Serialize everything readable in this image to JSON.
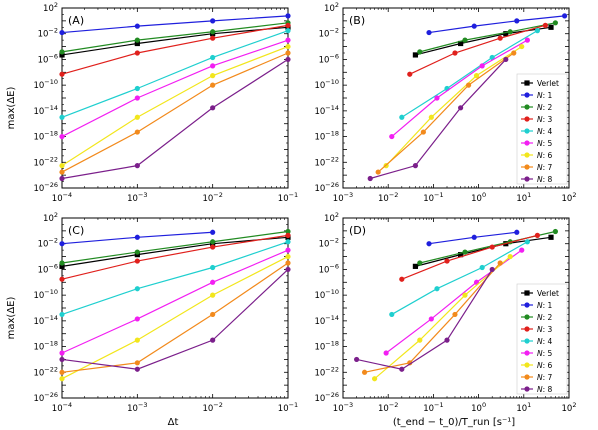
{
  "figure": {
    "ylabel": "max(ΔE)",
    "xlabel_left": "Δt",
    "xlabel_right": "(t_end − t_0)/T_run [s⁻¹]"
  },
  "colors": {
    "Verlet": "#000000",
    "N: 1": "#1f1fdd",
    "N: 2": "#228b22",
    "N: 3": "#e0201c",
    "N: 4": "#1fcfcf",
    "N: 5": "#f21ff2",
    "N: 6": "#f2e61c",
    "N: 7": "#f28a1c",
    "N: 8": "#7b1f8b"
  },
  "legend_labels": [
    "Verlet",
    "N: 1",
    "N: 2",
    "N: 3",
    "N: 4",
    "N: 5",
    "N: 6",
    "N: 7",
    "N: 8"
  ],
  "chart_data": [
    {
      "panel": "A",
      "type": "line",
      "xscale": "log",
      "yscale": "log",
      "xlim": [
        0.0001,
        0.1
      ],
      "ylim": [
        1e-26,
        100
      ],
      "xticks": [
        "10^-4",
        "10^-3",
        "10^-2",
        "10^-1"
      ],
      "yticks": [
        "10^-26",
        "10^-22",
        "10^-18",
        "10^-14",
        "10^-10",
        "10^-6",
        "10^-2",
        "10^2"
      ],
      "xlabel": "",
      "ylabel": "max(ΔE)",
      "legend": false,
      "series": [
        {
          "name": "Verlet",
          "x": [
            0.0001,
            0.001,
            0.01,
            0.1
          ],
          "y": [
            5e-06,
            0.0003,
            0.01,
            0.1
          ]
        },
        {
          "name": "N: 1",
          "x": [
            0.0001,
            0.001,
            0.01,
            0.1
          ],
          "y": [
            0.015,
            0.15,
            1,
            6
          ]
        },
        {
          "name": "N: 2",
          "x": [
            0.0001,
            0.001,
            0.01,
            0.1
          ],
          "y": [
            1.5e-05,
            0.001,
            0.02,
            0.5
          ]
        },
        {
          "name": "N: 3",
          "x": [
            0.0001,
            0.001,
            0.01,
            0.1
          ],
          "y": [
            5e-09,
            1e-05,
            0.002,
            0.2
          ]
        },
        {
          "name": "N: 4",
          "x": [
            0.0001,
            0.001,
            0.01,
            0.1
          ],
          "y": [
            1e-15,
            3e-11,
            2e-06,
            0.03
          ]
        },
        {
          "name": "N: 5",
          "x": [
            0.0001,
            0.001,
            0.01,
            0.1
          ],
          "y": [
            1e-18,
            1e-12,
            1e-07,
            0.001
          ]
        },
        {
          "name": "N: 6",
          "x": [
            0.0001,
            0.001,
            0.01,
            0.1
          ],
          "y": [
            3e-23,
            1e-15,
            3e-09,
            0.0001
          ]
        },
        {
          "name": "N: 7",
          "x": [
            0.0001,
            0.001,
            0.01,
            0.1
          ],
          "y": [
            3e-24,
            5e-18,
            1e-10,
            1e-05
          ]
        },
        {
          "name": "N: 8",
          "x": [
            0.0001,
            0.001,
            0.01,
            0.1
          ],
          "y": [
            3e-25,
            3e-23,
            3e-14,
            1e-06
          ]
        }
      ]
    },
    {
      "panel": "B",
      "type": "line",
      "xscale": "log",
      "yscale": "log",
      "xlim": [
        0.001,
        100
      ],
      "ylim": [
        1e-26,
        100
      ],
      "xticks": [
        "10^-3",
        "10^-2",
        "10^-1",
        "10^0",
        "10^1",
        "10^2"
      ],
      "yticks": [
        "10^-26",
        "10^-22",
        "10^-18",
        "10^-14",
        "10^-10",
        "10^-6",
        "10^-2",
        "10^2"
      ],
      "xlabel": "",
      "ylabel": "",
      "legend": true,
      "legend_position": "right",
      "series": [
        {
          "name": "Verlet",
          "x": [
            0.04,
            0.4,
            4,
            40
          ],
          "y": [
            5e-06,
            0.0003,
            0.01,
            0.1
          ]
        },
        {
          "name": "N: 1",
          "x": [
            0.08,
            0.8,
            7,
            80
          ],
          "y": [
            0.015,
            0.15,
            1,
            6
          ]
        },
        {
          "name": "N: 2",
          "x": [
            0.05,
            0.5,
            5,
            50
          ],
          "y": [
            1.5e-05,
            0.001,
            0.02,
            0.5
          ]
        },
        {
          "name": "N: 3",
          "x": [
            0.03,
            0.3,
            3,
            30
          ],
          "y": [
            5e-09,
            1e-05,
            0.002,
            0.2
          ]
        },
        {
          "name": "N: 4",
          "x": [
            0.02,
            0.2,
            2,
            20
          ],
          "y": [
            1e-15,
            3e-11,
            2e-06,
            0.03
          ]
        },
        {
          "name": "N: 5",
          "x": [
            0.012,
            0.12,
            1.2,
            12
          ],
          "y": [
            1e-18,
            1e-12,
            1e-07,
            0.001
          ]
        },
        {
          "name": "N: 6",
          "x": [
            0.009,
            0.09,
            0.9,
            9
          ],
          "y": [
            3e-23,
            1e-15,
            3e-09,
            0.0001
          ]
        },
        {
          "name": "N: 7",
          "x": [
            0.006,
            0.06,
            0.6,
            6
          ],
          "y": [
            3e-24,
            5e-18,
            1e-10,
            1e-05
          ]
        },
        {
          "name": "N: 8",
          "x": [
            0.004,
            0.04,
            0.4,
            4
          ],
          "y": [
            3e-25,
            3e-23,
            3e-14,
            1e-06
          ]
        }
      ]
    },
    {
      "panel": "C",
      "type": "line",
      "xscale": "log",
      "yscale": "log",
      "xlim": [
        0.0001,
        0.1
      ],
      "ylim": [
        1e-26,
        100
      ],
      "xticks": [
        "10^-4",
        "10^-3",
        "10^-2",
        "10^-1"
      ],
      "yticks": [
        "10^-26",
        "10^-22",
        "10^-18",
        "10^-14",
        "10^-10",
        "10^-6",
        "10^-2",
        "10^2"
      ],
      "xlabel": "Δt",
      "ylabel": "max(ΔE)",
      "legend": false,
      "series": [
        {
          "name": "Verlet",
          "x": [
            0.0001,
            0.001,
            0.01,
            0.1
          ],
          "y": [
            3e-06,
            0.0002,
            0.01,
            0.1
          ]
        },
        {
          "name": "N: 1",
          "x": [
            0.0001,
            0.001,
            0.01
          ],
          "y": [
            0.01,
            0.1,
            0.6
          ]
        },
        {
          "name": "N: 2",
          "x": [
            0.0001,
            0.001,
            0.01,
            0.1
          ],
          "y": [
            1e-05,
            0.0005,
            0.02,
            0.8
          ]
        },
        {
          "name": "N: 3",
          "x": [
            0.0001,
            0.001,
            0.01,
            0.1
          ],
          "y": [
            3e-08,
            2e-05,
            0.003,
            0.2
          ]
        },
        {
          "name": "N: 4",
          "x": [
            0.0001,
            0.001,
            0.01,
            0.1
          ],
          "y": [
            1e-13,
            1e-09,
            2e-06,
            0.02
          ]
        },
        {
          "name": "N: 5",
          "x": [
            0.0001,
            0.001,
            0.01,
            0.1
          ],
          "y": [
            1e-19,
            2e-14,
            1e-08,
            0.001
          ]
        },
        {
          "name": "N: 6",
          "x": [
            0.0001,
            0.001,
            0.01,
            0.1
          ],
          "y": [
            1e-23,
            1e-17,
            1e-10,
            0.0001
          ]
        },
        {
          "name": "N: 7",
          "x": [
            0.0001,
            0.001,
            0.01,
            0.1
          ],
          "y": [
            1e-22,
            3e-21,
            1e-13,
            1e-05
          ]
        },
        {
          "name": "N: 8",
          "x": [
            0.0001,
            0.001,
            0.01,
            0.1
          ],
          "y": [
            1e-20,
            3e-22,
            1e-17,
            1e-06
          ]
        }
      ]
    },
    {
      "panel": "D",
      "type": "line",
      "xscale": "log",
      "yscale": "log",
      "xlim": [
        0.001,
        100
      ],
      "ylim": [
        1e-26,
        100
      ],
      "xticks": [
        "10^-3",
        "10^-2",
        "10^-1",
        "10^0",
        "10^1",
        "10^2"
      ],
      "yticks": [
        "10^-26",
        "10^-22",
        "10^-18",
        "10^-14",
        "10^-10",
        "10^-6",
        "10^-2",
        "10^2"
      ],
      "xlabel": "(t_end − t_0)/T_run [s⁻¹]",
      "ylabel": "",
      "legend": true,
      "legend_position": "right",
      "series": [
        {
          "name": "Verlet",
          "x": [
            0.04,
            0.4,
            4,
            40
          ],
          "y": [
            3e-06,
            0.0002,
            0.01,
            0.1
          ]
        },
        {
          "name": "N: 1",
          "x": [
            0.08,
            0.8,
            7
          ],
          "y": [
            0.01,
            0.1,
            0.6
          ]
        },
        {
          "name": "N: 2",
          "x": [
            0.05,
            0.5,
            5,
            50
          ],
          "y": [
            1e-05,
            0.0005,
            0.02,
            0.8
          ]
        },
        {
          "name": "N: 3",
          "x": [
            0.02,
            0.2,
            2,
            20
          ],
          "y": [
            3e-08,
            2e-05,
            0.003,
            0.2
          ]
        },
        {
          "name": "N: 4",
          "x": [
            0.012,
            0.12,
            1.2,
            12
          ],
          "y": [
            1e-13,
            1e-09,
            2e-06,
            0.02
          ]
        },
        {
          "name": "N: 5",
          "x": [
            0.009,
            0.09,
            0.9,
            9
          ],
          "y": [
            1e-19,
            2e-14,
            1e-08,
            0.001
          ]
        },
        {
          "name": "N: 6",
          "x": [
            0.005,
            0.05,
            0.5,
            5
          ],
          "y": [
            1e-23,
            1e-17,
            1e-10,
            0.0001
          ]
        },
        {
          "name": "N: 7",
          "x": [
            0.003,
            0.03,
            0.3,
            3
          ],
          "y": [
            1e-22,
            3e-21,
            1e-13,
            1e-05
          ]
        },
        {
          "name": "N: 8",
          "x": [
            0.002,
            0.02,
            0.2,
            2
          ],
          "y": [
            1e-20,
            3e-22,
            1e-17,
            1e-06
          ]
        }
      ]
    }
  ]
}
